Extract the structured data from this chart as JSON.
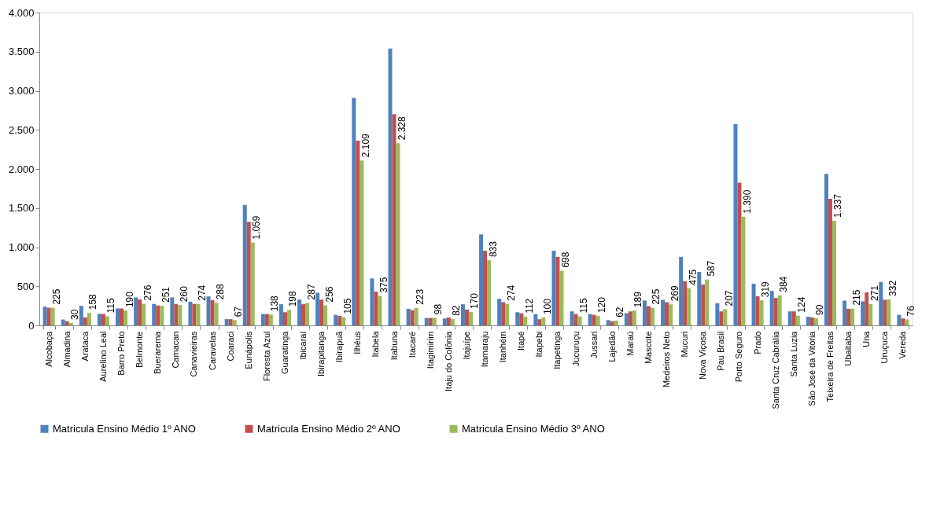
{
  "chart_data": {
    "type": "bar",
    "categories": [
      "Alcobaça",
      "Almadina",
      "Arataca",
      "Aurelino Leal",
      "Barro Preto",
      "Belmonte",
      "Buerarema",
      "Camacan",
      "Canavieiras",
      "Caravelas",
      "Coaraci",
      "Eunápolis",
      "Floresta Azul",
      "Guaratinga",
      "Ibicaraí",
      "Ibirapitanga",
      "Ibirapuã",
      "Ilhéus",
      "Itabela",
      "Itabuna",
      "Itacaré",
      "Itagimirim",
      "Itaju do Colônia",
      "Itajuípe",
      "Itamaraju",
      "Itanhém",
      "Itapé",
      "Itapebi",
      "Itapetinga",
      "Jucuruçu",
      "Jussari",
      "Lajedão",
      "Maraú",
      "Mascote",
      "Medeiros Neto",
      "Mucuri",
      "Nova Viçosa",
      "Pau Brasil",
      "Porto Seguro",
      "Prado",
      "Santa Cruz Cabrália",
      "Santa Luzia",
      "São José da Vitória",
      "Teixeira de Freitas",
      "Ubaitaba",
      "Una",
      "Uruçuca",
      "Vereda"
    ],
    "series": [
      {
        "name": "Matricula Ensino Médio 1º ANO",
        "color": "#4f81bd",
        "values": [
          240,
          75,
          250,
          147,
          216,
          357,
          274,
          357,
          302,
          370,
          79,
          1540,
          145,
          270,
          330,
          418,
          135,
          2910,
          600,
          3540,
          212,
          95,
          88,
          270,
          1163,
          340,
          168,
          145,
          954,
          179,
          145,
          67,
          155,
          317,
          327,
          876,
          684,
          283,
          2573,
          532,
          441,
          179,
          111,
          1938,
          317,
          307,
          556,
          135
        ]
      },
      {
        "name": "Matricula Ensino Médio 2º ANO",
        "color": "#c0504d",
        "values": [
          226,
          55,
          103,
          147,
          216,
          333,
          254,
          274,
          274,
          322,
          79,
          1324,
          145,
          168,
          270,
          330,
          121,
          2362,
          431,
          2700,
          195,
          95,
          101,
          202,
          954,
          297,
          155,
          78,
          876,
          145,
          135,
          54,
          179,
          246,
          297,
          566,
          522,
          179,
          1823,
          374,
          350,
          179,
          101,
          1617,
          212,
          421,
          327,
          88
        ]
      },
      {
        "name": "Matricula Ensino Médio 3º ANO",
        "color": "#9bbb59",
        "values": [
          225,
          30,
          158,
          115,
          190,
          276,
          251,
          260,
          274,
          288,
          67,
          1059,
          138,
          198,
          287,
          256,
          105,
          2109,
          375,
          2328,
          223,
          98,
          82,
          170,
          833,
          274,
          112,
          100,
          698,
          115,
          120,
          62,
          189,
          225,
          269,
          475,
          587,
          207,
          1390,
          319,
          384,
          124,
          90,
          1337,
          215,
          271,
          332,
          76
        ],
        "value_labels": [
          "225",
          "30",
          "158",
          "115",
          "190",
          "276",
          "251",
          "260",
          "274",
          "288",
          "67",
          "1.059",
          "138",
          "198",
          "287",
          "256",
          "105",
          "2.109",
          "375",
          "2.328",
          "223",
          "98",
          "82",
          "170",
          "833",
          "274",
          "112",
          "100",
          "698",
          "115",
          "120",
          "62",
          "189",
          "225",
          "269",
          "475",
          "587",
          "207",
          "1.390",
          "319",
          "384",
          "124",
          "90",
          "1.337",
          "215",
          "271",
          "332",
          "76"
        ]
      }
    ],
    "ylim": [
      0,
      4000
    ],
    "yticks": [
      0,
      500,
      {
        "value": 1000,
        "label": "1.000"
      },
      {
        "value": 1500,
        "label": "1.500"
      },
      {
        "value": 2000,
        "label": "2.000"
      },
      {
        "value": 2500,
        "label": "2.500"
      },
      {
        "value": 3000,
        "label": "3.000"
      },
      {
        "value": 3500,
        "label": "3.500"
      },
      {
        "value": 4000,
        "label": "4.000"
      }
    ],
    "grid": false,
    "legend": "bottom"
  }
}
